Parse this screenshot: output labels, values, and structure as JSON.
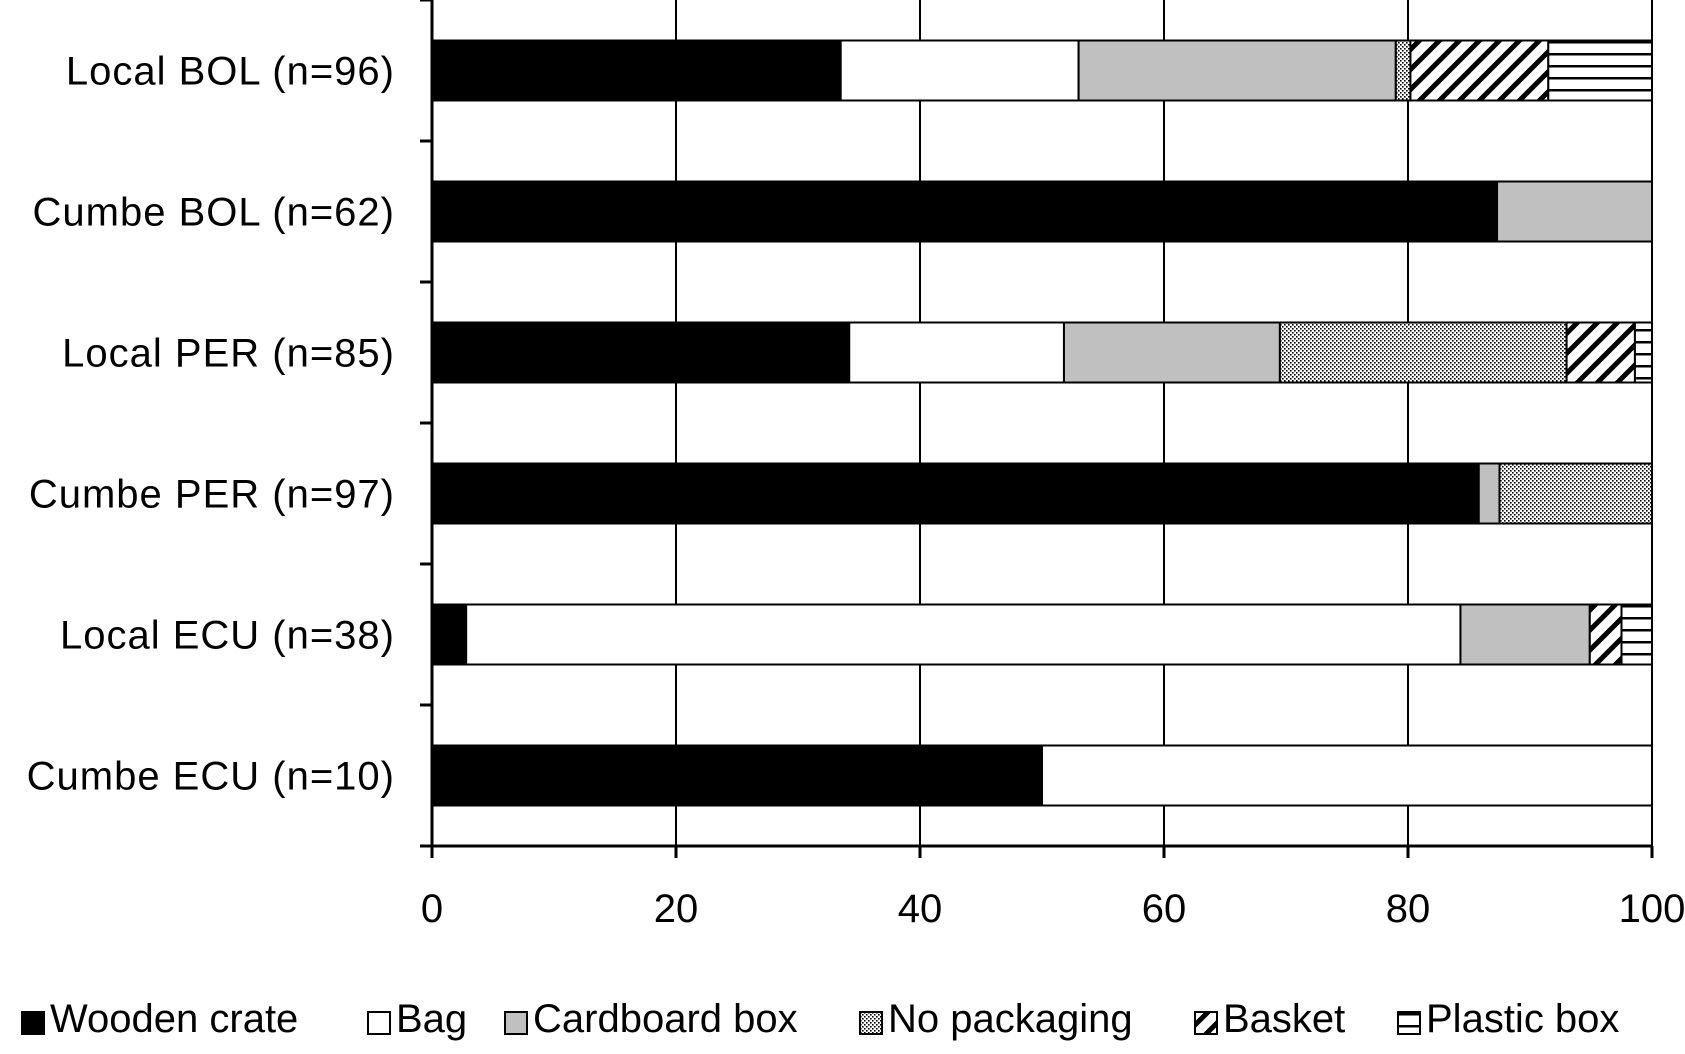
{
  "chart_data": {
    "type": "bar",
    "orientation": "horizontal",
    "stacked": true,
    "categories": [
      "Local BOL (n=96)",
      "Cumbe BOL (n=62)",
      "Local PER (n=85)",
      "Cumbe PER (n=97)",
      "Local ECU (n=38)",
      "Cumbe ECU (n=10)"
    ],
    "series": [
      {
        "name": "Wooden crate",
        "pattern": "solid-black",
        "values": [
          33.5,
          87.3,
          34.2,
          85.8,
          2.8,
          50.0
        ]
      },
      {
        "name": "Bag",
        "pattern": "solid-white",
        "values": [
          19.5,
          0,
          17.6,
          0,
          81.5,
          50.0
        ]
      },
      {
        "name": "Cardboard box",
        "pattern": "solid-gray",
        "values": [
          26.0,
          12.7,
          17.7,
          1.7,
          10.6,
          0
        ]
      },
      {
        "name": "No packaging",
        "pattern": "dotted",
        "values": [
          1.2,
          0,
          23.5,
          12.5,
          0,
          0
        ]
      },
      {
        "name": "Basket",
        "pattern": "diagonal",
        "values": [
          11.3,
          0,
          5.6,
          0,
          2.6,
          0
        ]
      },
      {
        "name": "Plastic box",
        "pattern": "horizontal",
        "values": [
          8.5,
          0,
          1.4,
          0,
          2.5,
          0
        ]
      }
    ],
    "xlim": [
      0,
      100
    ],
    "xticks": [
      0,
      20,
      40,
      60,
      80,
      100
    ],
    "grid": "vertical",
    "legend_position": "bottom",
    "colors": {
      "Wooden crate": "#000000",
      "Bag": "#ffffff",
      "Cardboard box": "#c0c0c0"
    }
  }
}
